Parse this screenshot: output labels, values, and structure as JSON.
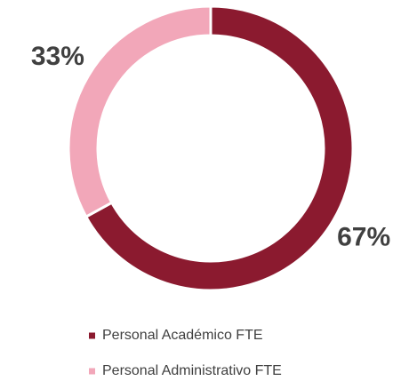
{
  "chart_data": {
    "type": "donut",
    "categories": [
      "Personal Académico FTE",
      "Personal Administrativo FTE"
    ],
    "values": [
      67,
      33
    ],
    "value_labels": [
      "67%",
      "33%"
    ],
    "colors": [
      "#8b1a2f",
      "#f2a7b9"
    ],
    "legend": "bottom"
  }
}
